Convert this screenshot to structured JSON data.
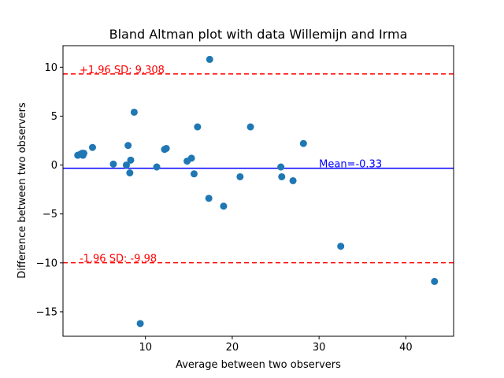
{
  "chart_data": {
    "type": "scatter",
    "title": "Bland Altman plot with data Willemijn and Irma",
    "xlabel": "Average between two observers",
    "ylabel": "Difference between two observers",
    "xlim": [
      0.5,
      45.5
    ],
    "ylim": [
      -17.5,
      12.2
    ],
    "xticks": [
      10,
      20,
      30,
      40
    ],
    "yticks": [
      -15,
      -10,
      -5,
      0,
      5,
      10
    ],
    "grid": false,
    "points": {
      "color": "#1f77b4",
      "x": [
        2.2,
        2.5,
        2.7,
        2.8,
        2.9,
        3.9,
        6.3,
        7.8,
        8.0,
        8.2,
        8.3,
        8.7,
        9.4,
        11.3,
        12.2,
        12.4,
        14.8,
        15.3,
        15.6,
        16.0,
        17.3,
        17.4,
        19.0,
        20.9,
        22.1,
        25.6,
        25.7,
        27.0,
        28.2,
        32.5,
        43.3
      ],
      "y": [
        1.0,
        1.1,
        1.2,
        1.0,
        1.2,
        1.8,
        0.1,
        0.0,
        2.0,
        -0.8,
        0.5,
        5.4,
        -16.2,
        -0.2,
        1.6,
        1.7,
        0.4,
        0.7,
        -0.9,
        3.9,
        -3.4,
        10.8,
        -4.2,
        -1.2,
        3.9,
        -0.2,
        -1.2,
        -1.6,
        2.2,
        -8.3,
        -11.9
      ]
    },
    "lines": [
      {
        "name": "upper",
        "y": 9.308,
        "color": "#ff0000",
        "style": "dashed",
        "label": "+1.96 SD: 9.308",
        "label_x": 2.4
      },
      {
        "name": "mean",
        "y": -0.33,
        "color": "#0000ff",
        "style": "solid",
        "label": "Mean=-0.33",
        "label_x": 30.0
      },
      {
        "name": "lower",
        "y": -9.98,
        "color": "#ff0000",
        "style": "dashed",
        "label": "-1.96 SD: -9.98",
        "label_x": 2.4
      }
    ]
  }
}
